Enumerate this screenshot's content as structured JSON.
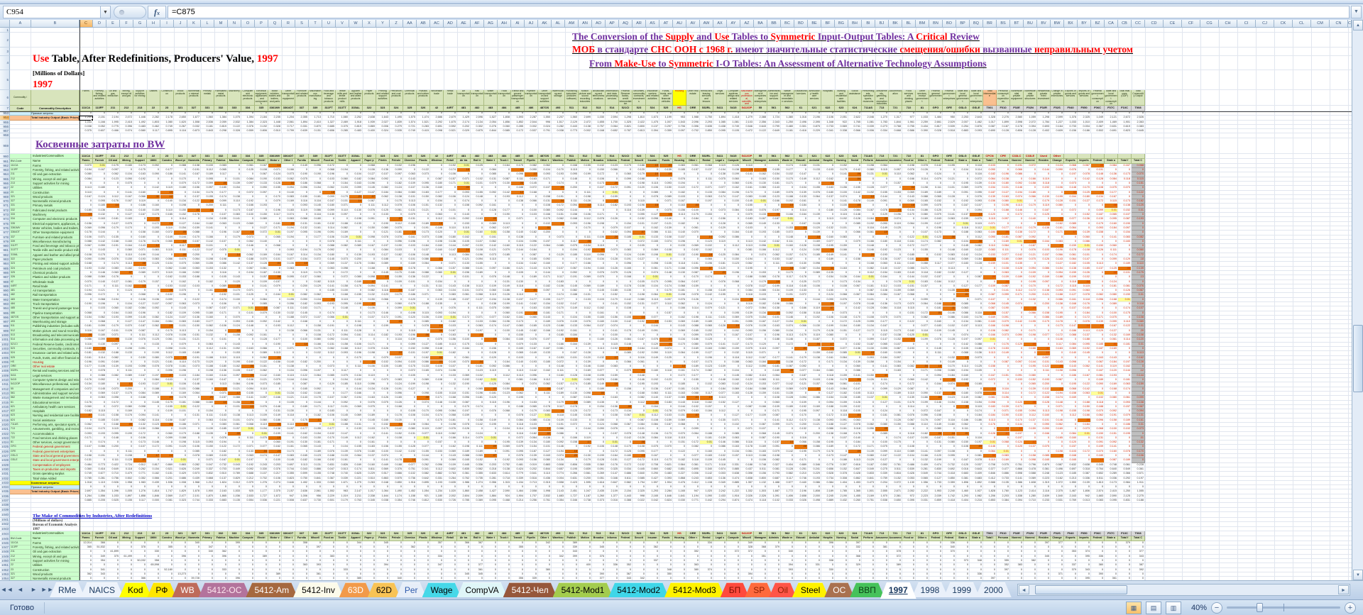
{
  "window": {
    "name_box": "C954",
    "formula": "=C875"
  },
  "titles": {
    "use_table": [
      {
        "t": "Use",
        "c": "#FF0000"
      },
      {
        "t": " Table, After Redefinitions, Producers' Value, ",
        "c": "#000000"
      },
      {
        "t": "1997",
        "c": "#FF0000"
      }
    ],
    "millions": "[Millions of Dollars]",
    "year": "1997"
  },
  "headlines": [
    {
      "segments": [
        {
          "t": "The Conversion of the ",
          "c": "#7030A0"
        },
        {
          "t": "Supply",
          "c": "#FF0000"
        },
        {
          "t": " and ",
          "c": "#7030A0"
        },
        {
          "t": "Use",
          "c": "#FF0000"
        },
        {
          "t": " Tables to ",
          "c": "#7030A0"
        },
        {
          "t": "Symmetric",
          "c": "#FF0000"
        },
        {
          "t": " Input-Output Tables: A ",
          "c": "#7030A0"
        },
        {
          "t": "Critical",
          "c": "#FF0000"
        },
        {
          "t": " Review",
          "c": "#7030A0"
        }
      ]
    },
    {
      "segments": [
        {
          "t": "МОБ",
          "c": "#FF0000"
        },
        {
          "t": " в стандарте ",
          "c": "#7030A0"
        },
        {
          "t": "СНС ООН с 1968 г.",
          "c": "#FF0000"
        },
        {
          "t": " имеют значительные статистические ",
          "c": "#7030A0"
        },
        {
          "t": "смещения/ошибки",
          "c": "#FF0000"
        },
        {
          "t": " вызванные ",
          "c": "#7030A0"
        },
        {
          "t": "неправильным учетом",
          "c": "#FF0000"
        }
      ]
    },
    {
      "segments": [
        {
          "t": "From ",
          "c": "#7030A0"
        },
        {
          "t": "Make-Use",
          "c": "#FF0000"
        },
        {
          "t": " to ",
          "c": "#7030A0"
        },
        {
          "t": "Symmetric",
          "c": "#FF0000"
        },
        {
          "t": " I-O Tables: An Assessment of Alternative Technology Assumptions",
          "c": "#7030A0"
        }
      ]
    }
  ],
  "bw_title": "Косвенные затраты по BW",
  "make_section": {
    "title": "The Make of Commodities by Industries, After Redefinitions",
    "subtitle": "(Millions of dollars)",
    "source": "Bureau of Economic Analysis",
    "year": "1997"
  },
  "table": {
    "corner": {
      "row6": "Commodity / Industry",
      "code": "Code",
      "desc": "Commodity Description"
    },
    "bw_corner": {
      "head": "Industries/Commodities",
      "code": "BW-Code",
      "name": "Name"
    },
    "direct_row_label": "Прямые затраты",
    "indirect_row_label": "Косвенные затраты",
    "total_row_label": "Total Industry Output (Basic Prices)",
    "va_rows": [
      "Compensation of employees",
      "Taxes on production and imports",
      "Gross operating surplus",
      "Total Value Added"
    ],
    "industries": [
      {
        "code": "111CA",
        "name": "Farms"
      },
      {
        "code": "113FF",
        "name": "Forestry, fishing, and related activities"
      },
      {
        "code": "211",
        "name": "Oil and gas extraction"
      },
      {
        "code": "212",
        "name": "Mining, except oil and gas"
      },
      {
        "code": "213",
        "name": "Support activities for mining"
      },
      {
        "code": "22",
        "name": "Utilities"
      },
      {
        "code": "23",
        "name": "Construction"
      },
      {
        "code": "321",
        "name": "Wood products"
      },
      {
        "code": "327",
        "name": "Nonmetallic mineral products"
      },
      {
        "code": "331",
        "name": "Primary metals"
      },
      {
        "code": "332",
        "name": "Fabricated metal products"
      },
      {
        "code": "333",
        "name": "Machinery"
      },
      {
        "code": "334",
        "name": "Computer and electronic products"
      },
      {
        "code": "335",
        "name": "Electrical equipment, appliances, and components"
      },
      {
        "code": "3361MV",
        "name": "Motor vehicles, bodies and trailers, and parts"
      },
      {
        "code": "3364OT",
        "name": "Other transportation equipment"
      },
      {
        "code": "337",
        "name": "Furniture and related products"
      },
      {
        "code": "339",
        "name": "Miscellaneous manufacturing"
      },
      {
        "code": "311FT",
        "name": "Food and beverage and tobacco products"
      },
      {
        "code": "313TT",
        "name": "Textile mills and textile product mills"
      },
      {
        "code": "315AL",
        "name": "Apparel and leather and allied products"
      },
      {
        "code": "322",
        "name": "Paper products"
      },
      {
        "code": "323",
        "name": "Printing and related support activities"
      },
      {
        "code": "324",
        "name": "Petroleum and coal products"
      },
      {
        "code": "325",
        "name": "Chemical products"
      },
      {
        "code": "326",
        "name": "Plastics and rubber products"
      },
      {
        "code": "42",
        "name": "Wholesale trade"
      },
      {
        "code": "44RT",
        "name": "Retail trade"
      },
      {
        "code": "481",
        "name": "Air transportation"
      },
      {
        "code": "482",
        "name": "Rail transportation"
      },
      {
        "code": "483",
        "name": "Water transportation"
      },
      {
        "code": "484",
        "name": "Truck transportation"
      },
      {
        "code": "485",
        "name": "Transit and ground passenger transportation"
      },
      {
        "code": "486",
        "name": "Pipeline transportation"
      },
      {
        "code": "487OS",
        "name": "Other transportation and support activities"
      },
      {
        "code": "493",
        "name": "Warehousing and storage"
      },
      {
        "code": "511",
        "name": "Publishing industries (includes software)"
      },
      {
        "code": "512",
        "name": "Motion picture and sound recording industries"
      },
      {
        "code": "513",
        "name": "Broadcasting and telecommunications"
      },
      {
        "code": "514",
        "name": "Information and data processing services"
      },
      {
        "code": "521CI",
        "name": "Federal Reserve banks, credit intermediation"
      },
      {
        "code": "523",
        "name": "Securities, commodity contracts, investments"
      },
      {
        "code": "524",
        "name": "Insurance carriers and related activities"
      },
      {
        "code": "525",
        "name": "Funds, trusts, and other financial vehicles"
      },
      {
        "code": "HS",
        "name": "Housing"
      },
      {
        "code": "ORE",
        "name": "Other real estate"
      },
      {
        "code": "532RL",
        "name": "Rental and leasing services and lessors"
      },
      {
        "code": "5411",
        "name": "Legal services"
      },
      {
        "code": "5415",
        "name": "Computer systems design and related services"
      },
      {
        "code": "5412OP",
        "name": "Miscellaneous professional, scientific, and technical services"
      },
      {
        "code": "55",
        "name": "Management of companies and enterprises"
      },
      {
        "code": "561",
        "name": "Administrative and support services"
      },
      {
        "code": "562",
        "name": "Waste management and remediation services"
      },
      {
        "code": "61",
        "name": "Educational services"
      },
      {
        "code": "621",
        "name": "Ambulatory health care services"
      },
      {
        "code": "622",
        "name": "Hospitals"
      },
      {
        "code": "623",
        "name": "Nursing and residential care facilities"
      },
      {
        "code": "624",
        "name": "Social assistance"
      },
      {
        "code": "711AS",
        "name": "Performing arts, spectator sports, museums"
      },
      {
        "code": "713",
        "name": "Amusements, gambling, and recreation industries"
      },
      {
        "code": "721",
        "name": "Accommodation"
      },
      {
        "code": "722",
        "name": "Food services and drinking places"
      },
      {
        "code": "81",
        "name": "Other services, except government"
      },
      {
        "code": "GFG",
        "name": "Federal general government"
      },
      {
        "code": "GFE",
        "name": "Federal government enterprises"
      },
      {
        "code": "GSLG",
        "name": "State and local general government"
      },
      {
        "code": "GSLE",
        "name": "State and local government enterprises"
      }
    ],
    "final_demand": [
      {
        "code": "T001",
        "name": "Total Intermediate"
      },
      {
        "code": "F010",
        "name": "Personal consumption expenditures"
      },
      {
        "code": "F02E",
        "name": "Nonresidential private equipment"
      },
      {
        "code": "F02N",
        "name": "Nonresidential private structures"
      },
      {
        "code": "F02R",
        "name": "Residential private fixed investment"
      },
      {
        "code": "F02S",
        "name": "Change in private inventories"
      },
      {
        "code": "F040",
        "name": "Exports of goods and services"
      },
      {
        "code": "F050",
        "name": "Imports of goods and services"
      },
      {
        "code": "F06C",
        "name": "Federal government consumption"
      },
      {
        "code": "F07C",
        "name": "State and local government consumption"
      },
      {
        "code": "F10C",
        "name": "Total final uses (GDP)"
      },
      {
        "code": "T008",
        "name": "Total Commodity Output"
      }
    ],
    "bw_fd_codes": [
      "CPCN",
      "CPE",
      "C33LC",
      "C33LE",
      "Used",
      "Other"
    ]
  },
  "sheet_tabs": [
    {
      "label": "RMe",
      "bg": "#EDF3FB",
      "fg": "#17375E"
    },
    {
      "label": "NAICS",
      "bg": "#EDF3FB",
      "fg": "#17375E"
    },
    {
      "label": "Kod",
      "bg": "#FFFF00",
      "fg": "#000000"
    },
    {
      "label": "РФ",
      "bg": "#FFE600",
      "fg": "#000000"
    },
    {
      "label": "WB",
      "bg": "#BE6B5A",
      "fg": "#FFFFFF"
    },
    {
      "label": "5412-OC",
      "bg": "#B3739C",
      "fg": "#FFE8F0"
    },
    {
      "label": "5412-Am",
      "bg": "#A5683F",
      "fg": "#FFFFFF"
    },
    {
      "label": "5412-Inv",
      "bg": "#FCFBEA",
      "fg": "#000000"
    },
    {
      "label": "63D",
      "bg": "#F29A4A",
      "fg": "#FFFFFF"
    },
    {
      "label": "62D",
      "bg": "#F8C355",
      "fg": "#000000"
    },
    {
      "label": "Per",
      "bg": "#E7EEF8",
      "fg": "#2E5AAC"
    },
    {
      "label": "Wage",
      "bg": "#46D8E8",
      "fg": "#000000"
    },
    {
      "label": "CompVA",
      "bg": "#DFF6F8",
      "fg": "#000000"
    },
    {
      "label": "5412-Чел",
      "bg": "#96573B",
      "fg": "#FFFFFF"
    },
    {
      "label": "5412-Mod1",
      "bg": "#A3CC4E",
      "fg": "#000000"
    },
    {
      "label": "5412-Mod2",
      "bg": "#3FD6E8",
      "fg": "#000000"
    },
    {
      "label": "5412-Mod3",
      "bg": "#FFF200",
      "fg": "#000000"
    },
    {
      "label": "БП",
      "bg": "#FF4A3D",
      "fg": "#7C0E00"
    },
    {
      "label": "SP",
      "bg": "#FF6A3D",
      "fg": "#8A1E00"
    },
    {
      "label": "Oil",
      "bg": "#FF5548",
      "fg": "#8A1E00"
    },
    {
      "label": "Steel",
      "bg": "#FFF200",
      "fg": "#000000"
    },
    {
      "label": "OC",
      "bg": "#A9714F",
      "fg": "#FFFFFF"
    },
    {
      "label": "ВВП",
      "bg": "#46C25A",
      "fg": "#0A3D14"
    },
    {
      "label": "1997",
      "bg": "#FFFFFF",
      "fg": "#17375E",
      "active": true
    },
    {
      "label": "1998",
      "bg": "#E9F0FA",
      "fg": "#17375E"
    },
    {
      "label": "1999",
      "bg": "#E9F0FA",
      "fg": "#17375E"
    },
    {
      "label": "2000",
      "bg": "#E9F0FA",
      "fg": "#17375E"
    }
  ],
  "status": {
    "ready": "Готово",
    "zoom": "40%"
  },
  "grid": {
    "seed": 7,
    "selected_cell": "C954",
    "selected_row": 954,
    "selected_col": "C"
  }
}
